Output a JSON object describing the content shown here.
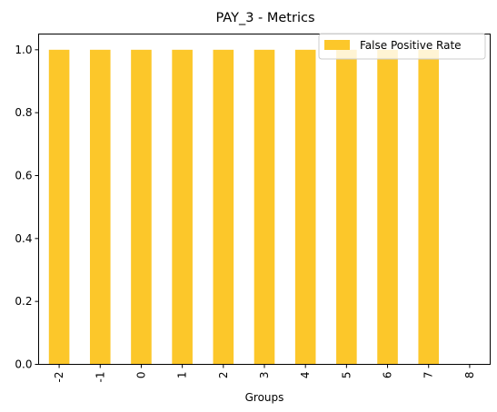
{
  "chart_data": {
    "type": "bar",
    "title": "PAY_3 - Metrics",
    "xlabel": "Groups",
    "ylabel": "",
    "categories": [
      "-2",
      "-1",
      "0",
      "1",
      "2",
      "3",
      "4",
      "5",
      "6",
      "7",
      "8"
    ],
    "series": [
      {
        "name": "False Positive Rate",
        "values": [
          1.0,
          1.0,
          1.0,
          1.0,
          1.0,
          1.0,
          1.0,
          1.0,
          1.0,
          1.0,
          0.0
        ]
      }
    ],
    "ylim": [
      0,
      1.05
    ],
    "yticks": [
      0.0,
      0.2,
      0.4,
      0.6,
      0.8,
      1.0
    ],
    "ytick_labels": [
      "0.0",
      "0.2",
      "0.4",
      "0.6",
      "0.8",
      "1.0"
    ],
    "grid": false,
    "legend_position": "top-right",
    "colors": {
      "bar": "#fcc72a",
      "axis": "#000000"
    }
  }
}
